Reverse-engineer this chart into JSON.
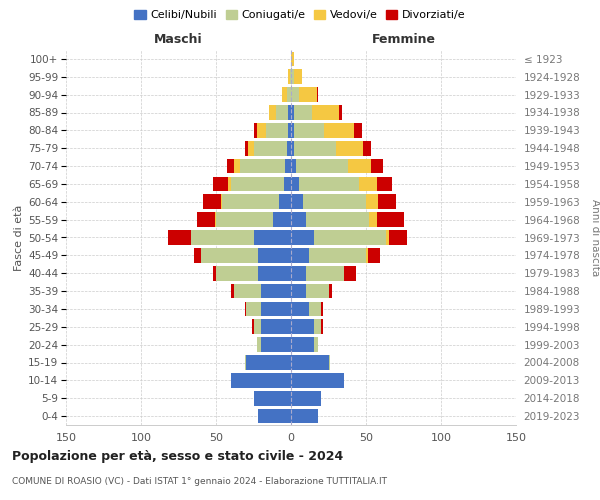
{
  "age_groups": [
    "0-4",
    "5-9",
    "10-14",
    "15-19",
    "20-24",
    "25-29",
    "30-34",
    "35-39",
    "40-44",
    "45-49",
    "50-54",
    "55-59",
    "60-64",
    "65-69",
    "70-74",
    "75-79",
    "80-84",
    "85-89",
    "90-94",
    "95-99",
    "100+"
  ],
  "birth_years": [
    "2019-2023",
    "2014-2018",
    "2009-2013",
    "2004-2008",
    "1999-2003",
    "1994-1998",
    "1989-1993",
    "1984-1988",
    "1979-1983",
    "1974-1978",
    "1969-1973",
    "1964-1968",
    "1959-1963",
    "1954-1958",
    "1949-1953",
    "1944-1948",
    "1939-1943",
    "1934-1938",
    "1929-1933",
    "1924-1928",
    "≤ 1923"
  ],
  "colors": {
    "celibi": "#4472C4",
    "coniugati": "#BFCE93",
    "vedovi": "#F5C842",
    "divorziati": "#CC0000"
  },
  "males": {
    "celibi": [
      22,
      25,
      40,
      30,
      20,
      20,
      20,
      20,
      22,
      22,
      25,
      12,
      8,
      5,
      4,
      3,
      2,
      2,
      0,
      0,
      0
    ],
    "coniugati": [
      0,
      0,
      0,
      1,
      3,
      5,
      10,
      18,
      28,
      38,
      42,
      38,
      38,
      35,
      30,
      22,
      15,
      8,
      3,
      1,
      0
    ],
    "vedovi": [
      0,
      0,
      0,
      0,
      0,
      0,
      0,
      0,
      0,
      0,
      0,
      1,
      1,
      2,
      4,
      4,
      6,
      5,
      3,
      1,
      0
    ],
    "divorziati": [
      0,
      0,
      0,
      0,
      0,
      1,
      1,
      2,
      2,
      5,
      15,
      12,
      12,
      10,
      5,
      2,
      2,
      0,
      0,
      0,
      0
    ]
  },
  "females": {
    "celibi": [
      18,
      20,
      35,
      25,
      15,
      15,
      12,
      10,
      10,
      12,
      15,
      10,
      8,
      5,
      3,
      2,
      2,
      2,
      0,
      0,
      0
    ],
    "coniugati": [
      0,
      0,
      0,
      1,
      3,
      5,
      8,
      15,
      25,
      38,
      48,
      42,
      42,
      40,
      35,
      28,
      20,
      12,
      5,
      2,
      0
    ],
    "vedovi": [
      0,
      0,
      0,
      0,
      0,
      0,
      0,
      0,
      0,
      1,
      2,
      5,
      8,
      12,
      15,
      18,
      20,
      18,
      12,
      5,
      2
    ],
    "divorziati": [
      0,
      0,
      0,
      0,
      0,
      1,
      1,
      2,
      8,
      8,
      12,
      18,
      12,
      10,
      8,
      5,
      5,
      2,
      1,
      0,
      0
    ]
  },
  "title": "Popolazione per età, sesso e stato civile - 2024",
  "subtitle": "COMUNE DI ROASIO (VC) - Dati ISTAT 1° gennaio 2024 - Elaborazione TUTTITALIA.IT",
  "xlabel_left": "Maschi",
  "xlabel_right": "Femmine",
  "ylabel_left": "Fasce di età",
  "ylabel_right": "Anni di nascita",
  "xlim": 150,
  "legend_labels": [
    "Celibi/Nubili",
    "Coniugati/e",
    "Vedovi/e",
    "Divorziati/e"
  ],
  "background_color": "#ffffff",
  "grid_color": "#cccccc"
}
